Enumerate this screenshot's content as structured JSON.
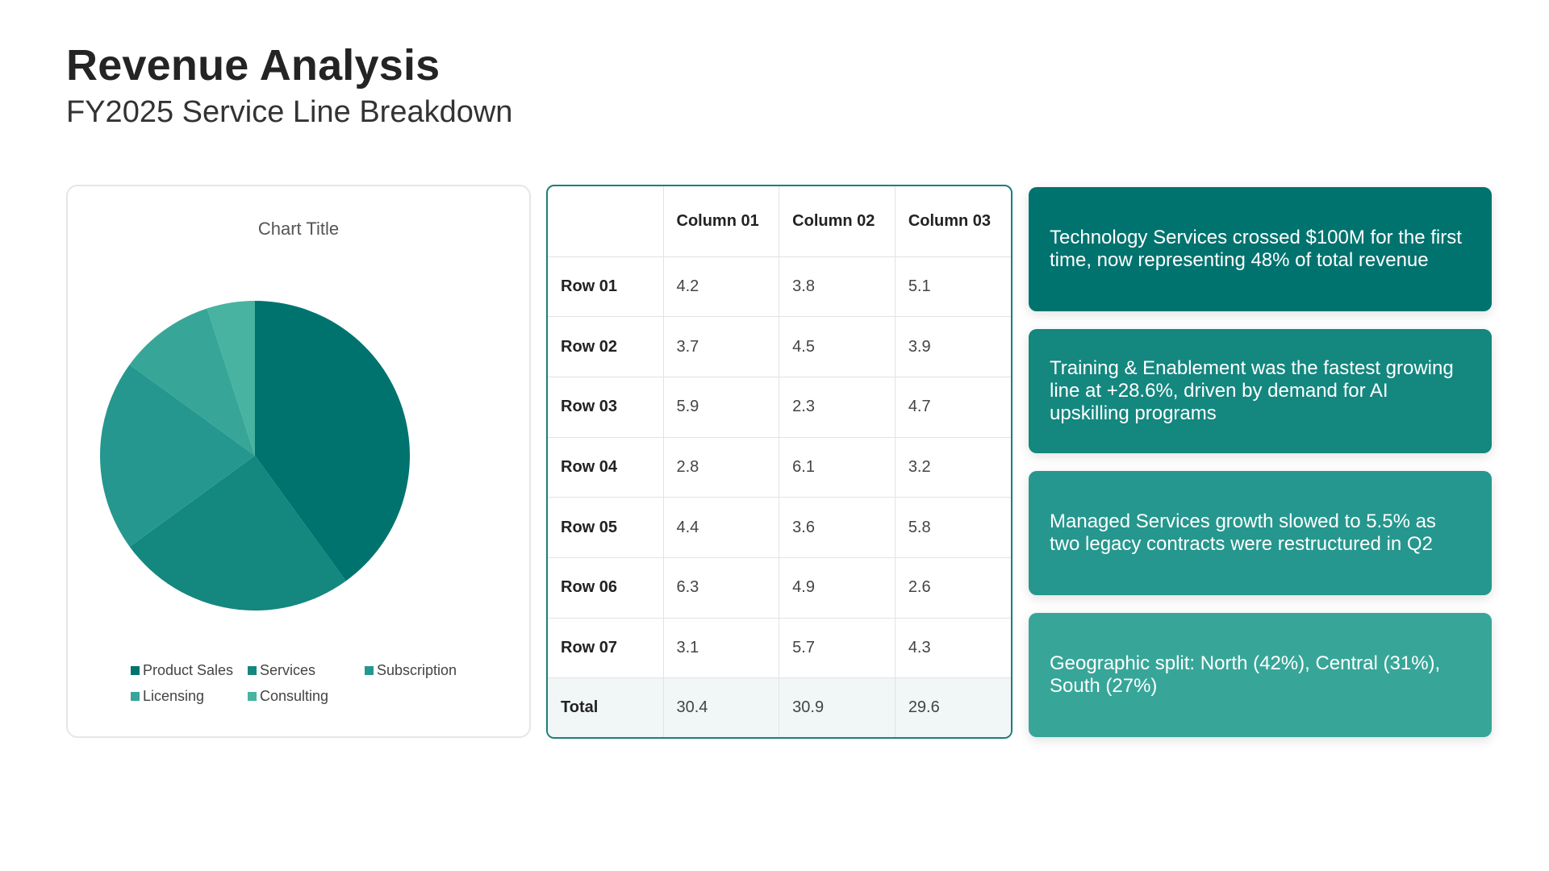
{
  "header": {
    "title": "Revenue Analysis",
    "subtitle": "FY2025 Service Line Breakdown"
  },
  "chart_data": {
    "type": "pie",
    "title": "Chart Title",
    "categories": [
      "Product Sales",
      "Services",
      "Subscription",
      "Licensing",
      "Consulting"
    ],
    "values": [
      40,
      25,
      20,
      10,
      5
    ],
    "colors": [
      "#00736f",
      "#14877f",
      "#25978e",
      "#37a699",
      "#47b3a0"
    ],
    "legend_position": "bottom"
  },
  "table": {
    "columns": [
      "",
      "Column 01",
      "Column 02",
      "Column 03"
    ],
    "rows": [
      {
        "label": "Row 01",
        "values": [
          "4.2",
          "3.8",
          "5.1"
        ]
      },
      {
        "label": "Row 02",
        "values": [
          "3.7",
          "4.5",
          "3.9"
        ]
      },
      {
        "label": "Row 03",
        "values": [
          "5.9",
          "2.3",
          "4.7"
        ]
      },
      {
        "label": "Row 04",
        "values": [
          "2.8",
          "6.1",
          "3.2"
        ]
      },
      {
        "label": "Row 05",
        "values": [
          "4.4",
          "3.6",
          "5.8"
        ]
      },
      {
        "label": "Row 06",
        "values": [
          "6.3",
          "4.9",
          "2.6"
        ]
      },
      {
        "label": "Row 07",
        "values": [
          "3.1",
          "5.7",
          "4.3"
        ]
      }
    ],
    "total": {
      "label": "Total",
      "values": [
        "30.4",
        "30.9",
        "29.6"
      ]
    }
  },
  "insights": [
    {
      "text": "Technology Services crossed $100M for the first time, now representing 48% of total revenue",
      "color": "#00736f"
    },
    {
      "text": "Training & Enablement was the fastest growing line at +28.6%, driven by demand for AI upskilling programs",
      "color": "#14877f"
    },
    {
      "text": "Managed Services growth slowed to 5.5% as two legacy contracts were restructured in Q2",
      "color": "#25978e"
    },
    {
      "text": "Geographic split: North (42%), Central (31%), South (27%)",
      "color": "#37a699"
    }
  ]
}
